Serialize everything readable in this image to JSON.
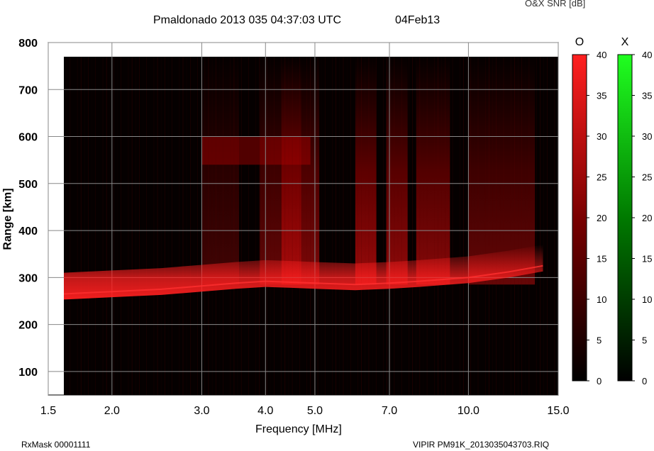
{
  "header": {
    "title": "Pmaldonado 2013 035 04:37:03 UTC",
    "date": "04Feb13",
    "snr_label": "O&X SNR [dB]"
  },
  "footer": {
    "rx_mask": "RxMask 00001111",
    "filename": "VIPIR  PM91K_2013035043703.RIQ"
  },
  "chart_data": {
    "type": "heatmap",
    "title": "Pmaldonado 2013 035 04:37:03 UTC",
    "xlabel": "Frequency [MHz]",
    "ylabel": "Range [km]",
    "xscale": "log",
    "xlim": [
      1.5,
      15.0
    ],
    "ylim": [
      50,
      800
    ],
    "x_ticks": [
      "1.5",
      "2.0",
      "3.0",
      "4.0",
      "5.0",
      "7.0",
      "10.0",
      "15.0"
    ],
    "x_tick_values": [
      1.5,
      2.0,
      3.0,
      4.0,
      5.0,
      7.0,
      10.0,
      15.0
    ],
    "y_ticks": [
      100,
      200,
      300,
      400,
      500,
      600,
      700,
      800
    ],
    "grid": true,
    "o_trace": [
      {
        "f": 1.6,
        "r": 265
      },
      {
        "f": 2.0,
        "r": 270
      },
      {
        "f": 2.5,
        "r": 275
      },
      {
        "f": 3.0,
        "r": 282
      },
      {
        "f": 3.5,
        "r": 288
      },
      {
        "f": 4.0,
        "r": 292
      },
      {
        "f": 4.5,
        "r": 290
      },
      {
        "f": 5.0,
        "r": 288
      },
      {
        "f": 6.0,
        "r": 285
      },
      {
        "f": 7.0,
        "r": 288
      },
      {
        "f": 8.0,
        "r": 292
      },
      {
        "f": 10.0,
        "r": 300
      },
      {
        "f": 12.0,
        "r": 312
      },
      {
        "f": 14.0,
        "r": 325
      }
    ],
    "colorbars": [
      {
        "name": "O",
        "color": "#ff2020",
        "ticks": [
          0,
          5,
          10,
          15,
          20,
          25,
          30,
          35,
          40
        ]
      },
      {
        "name": "X",
        "color": "#20ff20",
        "ticks": [
          0,
          5,
          10,
          15,
          20,
          25,
          30,
          35,
          40
        ]
      }
    ]
  }
}
